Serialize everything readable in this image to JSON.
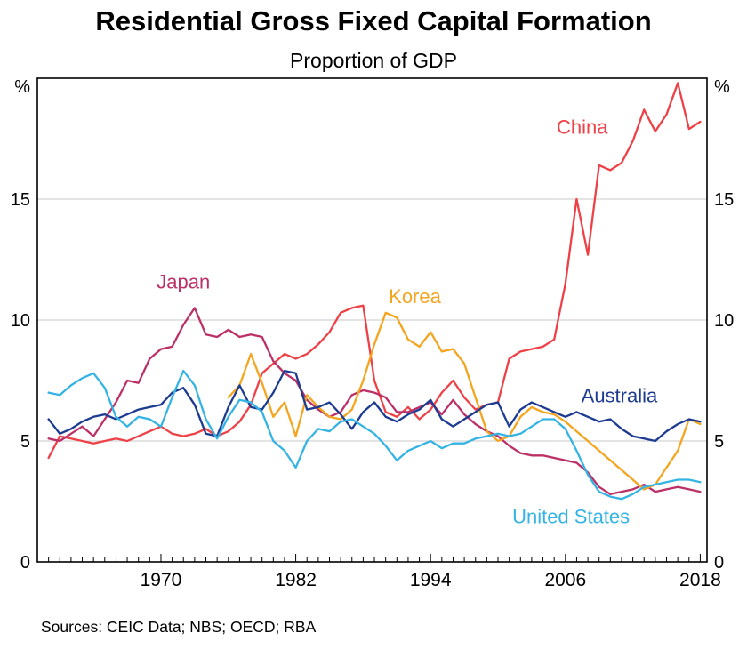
{
  "page": {
    "sources": "Sources: CEIC Data; NBS; OECD; RBA"
  },
  "chart_data": {
    "type": "line",
    "title": "Residential Gross Fixed Capital Formation",
    "subtitle": "Proportion of GDP",
    "unit": "%",
    "ylim": [
      0,
      20
    ],
    "yticks": [
      0,
      5,
      10,
      15
    ],
    "grid_values": [
      5,
      10,
      15
    ],
    "grid_color": "#c9c9c9",
    "xlim": [
      1959,
      2018.6
    ],
    "xticks": [
      1970,
      1982,
      1994,
      2006,
      2018
    ],
    "minor_xtick_interval": 1,
    "legend": "inline-labels",
    "series": [
      {
        "name": "China",
        "color": "#ee4147",
        "start_year": 1960,
        "label_x": 2007.5,
        "label_y": 17.7,
        "values": [
          4.3,
          5.2,
          5.1,
          5.0,
          4.9,
          5.0,
          5.1,
          5.0,
          5.2,
          5.4,
          5.6,
          5.3,
          5.2,
          5.3,
          5.5,
          5.2,
          5.4,
          5.8,
          6.5,
          7.8,
          8.2,
          8.6,
          8.4,
          8.6,
          9.0,
          9.5,
          10.3,
          10.5,
          10.6,
          7.5,
          6.2,
          6.0,
          6.4,
          5.9,
          6.3,
          7.0,
          7.5,
          6.8,
          6.3,
          6.5,
          6.6,
          8.4,
          8.7,
          8.8,
          8.9,
          9.2,
          11.5,
          15.0,
          12.7,
          16.4,
          16.2,
          16.5,
          17.4,
          18.7,
          17.8,
          18.5,
          19.8,
          17.9,
          18.2
        ]
      },
      {
        "name": "Japan",
        "color": "#bb3066",
        "start_year": 1960,
        "label_x": 1972.0,
        "label_y": 11.3,
        "values": [
          5.1,
          5.0,
          5.3,
          5.6,
          5.2,
          5.9,
          6.6,
          7.5,
          7.4,
          8.4,
          8.8,
          8.9,
          9.8,
          10.5,
          9.4,
          9.3,
          9.6,
          9.3,
          9.4,
          9.3,
          8.3,
          7.8,
          7.5,
          6.7,
          6.3,
          6.0,
          6.2,
          6.9,
          7.1,
          7.0,
          6.8,
          6.2,
          6.2,
          6.4,
          6.6,
          6.1,
          6.7,
          6.1,
          5.7,
          5.4,
          5.2,
          4.8,
          4.5,
          4.4,
          4.4,
          4.3,
          4.2,
          4.1,
          3.7,
          3.1,
          2.8,
          2.9,
          3.0,
          3.2,
          2.9,
          3.0,
          3.1,
          3.0,
          2.9
        ]
      },
      {
        "name": "Korea",
        "color": "#f3a51f",
        "start_year": 1976,
        "label_x": 1992.6,
        "label_y": 10.7,
        "values": [
          6.8,
          7.3,
          8.6,
          7.4,
          6.0,
          6.6,
          5.2,
          6.9,
          6.4,
          6.0,
          5.9,
          6.3,
          7.5,
          9.0,
          10.3,
          10.1,
          9.2,
          8.9,
          9.5,
          8.7,
          8.8,
          8.2,
          6.8,
          5.4,
          5.0,
          5.2,
          6.0,
          6.4,
          6.2,
          6.1,
          5.8,
          5.4,
          5.0,
          4.6,
          4.2,
          3.8,
          3.4,
          3.0,
          3.2,
          3.9,
          4.6,
          5.9,
          5.7
        ]
      },
      {
        "name": "Australia",
        "color": "#1d3c91",
        "start_year": 1960,
        "label_x": 2010.8,
        "label_y": 6.6,
        "values": [
          5.9,
          5.3,
          5.5,
          5.8,
          6.0,
          6.1,
          5.9,
          6.1,
          6.3,
          6.4,
          6.5,
          7.0,
          7.2,
          6.5,
          5.3,
          5.2,
          6.4,
          7.3,
          6.4,
          6.3,
          7.0,
          7.9,
          7.8,
          6.3,
          6.4,
          6.6,
          6.1,
          5.5,
          6.2,
          6.6,
          6.0,
          5.8,
          6.1,
          6.3,
          6.7,
          5.9,
          5.6,
          5.9,
          6.2,
          6.5,
          6.6,
          5.6,
          6.3,
          6.6,
          6.4,
          6.2,
          6.0,
          6.2,
          6.0,
          5.8,
          5.9,
          5.5,
          5.2,
          5.1,
          5.0,
          5.4,
          5.7,
          5.9,
          5.8
        ]
      },
      {
        "name": "United States",
        "color": "#35b4e4",
        "start_year": 1960,
        "label_x": 2006.5,
        "label_y": 1.6,
        "values": [
          7.0,
          6.9,
          7.3,
          7.6,
          7.8,
          7.2,
          6.0,
          5.6,
          6.0,
          5.9,
          5.6,
          6.8,
          7.9,
          7.3,
          5.9,
          5.1,
          6.0,
          6.7,
          6.6,
          6.2,
          5.0,
          4.6,
          3.9,
          5.0,
          5.5,
          5.4,
          5.8,
          5.9,
          5.6,
          5.3,
          4.8,
          4.2,
          4.6,
          4.8,
          5.0,
          4.7,
          4.9,
          4.9,
          5.1,
          5.2,
          5.3,
          5.2,
          5.3,
          5.6,
          5.9,
          5.9,
          5.5,
          4.6,
          3.6,
          2.9,
          2.7,
          2.6,
          2.8,
          3.1,
          3.2,
          3.3,
          3.4,
          3.4,
          3.3
        ]
      }
    ]
  }
}
